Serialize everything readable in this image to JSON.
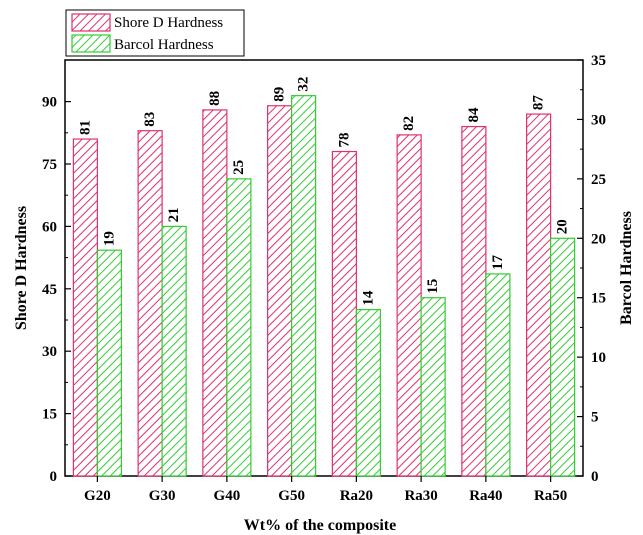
{
  "chart_data": {
    "type": "bar",
    "categories": [
      "G20",
      "G30",
      "G40",
      "G50",
      "Ra20",
      "Ra30",
      "Ra40",
      "Ra50"
    ],
    "series": [
      {
        "name": "Shore D Hardness",
        "axis": "left",
        "values": [
          81,
          83,
          88,
          89,
          78,
          82,
          84,
          87
        ],
        "color": "#e0306e",
        "pattern": "diagonal-hatch"
      },
      {
        "name": "Barcol Hardness",
        "axis": "right",
        "values": [
          19,
          21,
          25,
          32,
          14,
          15,
          17,
          20
        ],
        "color": "#33cc33",
        "pattern": "diagonal-hatch"
      }
    ],
    "xlabel": "Wt% of the composite",
    "ylabel_left": "Shore D Hardness",
    "ylabel_right": "Barcol Hardness",
    "ylim_left": [
      0,
      100
    ],
    "ylim_right": [
      0,
      35
    ],
    "yticks_left": [
      0,
      15,
      30,
      45,
      60,
      75,
      90
    ],
    "yticks_right": [
      0,
      5,
      10,
      15,
      20,
      25,
      30,
      35
    ],
    "grid": false,
    "legend_position": "top-left"
  }
}
